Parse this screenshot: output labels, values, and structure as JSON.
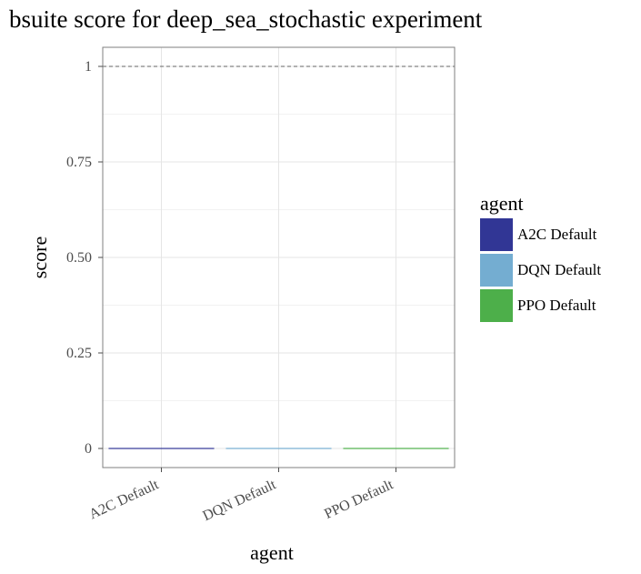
{
  "chart_data": {
    "type": "bar",
    "title": "bsuite score for deep_sea_stochastic experiment",
    "xlabel": "agent",
    "ylabel": "score",
    "categories": [
      "A2C Default",
      "DQN Default",
      "PPO Default"
    ],
    "values": [
      0,
      0,
      0
    ],
    "colors": [
      "#313695",
      "#74add1",
      "#4daf4a"
    ],
    "ylim": [
      -0.05,
      1.05
    ],
    "yticks": [
      0,
      0.25,
      0.5,
      0.75,
      1
    ],
    "ytick_labels": [
      "0",
      "0.25",
      "0.50",
      "0.75",
      "1"
    ],
    "reference_line": {
      "y": 1,
      "style": "dashed"
    },
    "grid": true,
    "legend": {
      "title": "agent",
      "placement": "right",
      "entries": [
        "A2C Default",
        "DQN Default",
        "PPO Default"
      ]
    }
  }
}
